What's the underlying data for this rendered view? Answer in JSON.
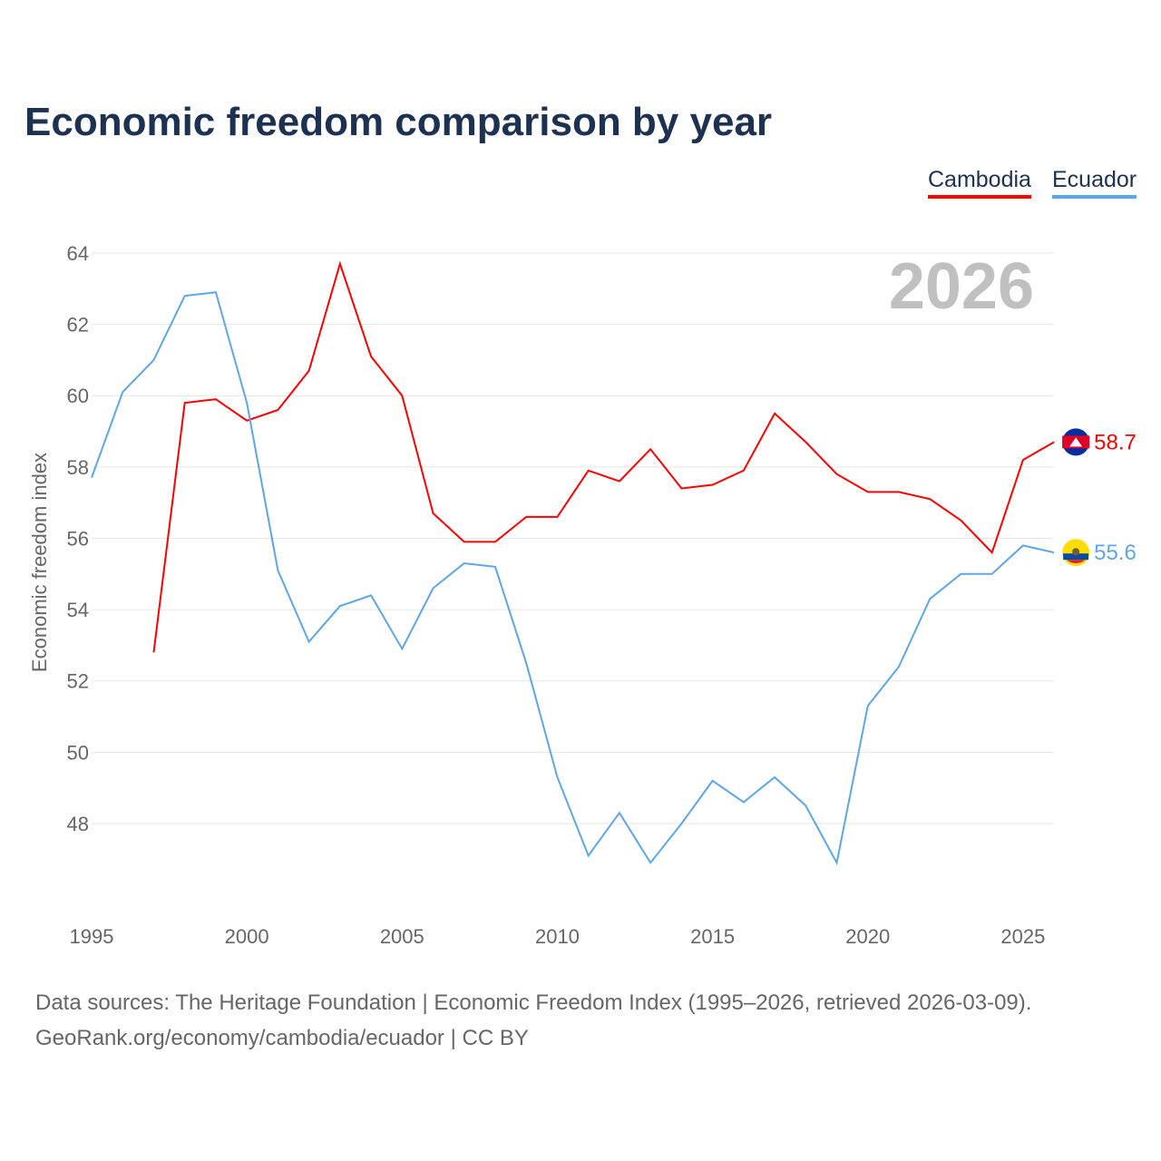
{
  "chart_data": {
    "type": "line",
    "title": "Economic freedom comparison by year",
    "xlabel": "",
    "ylabel": "Economic freedom index",
    "xlim": [
      1995,
      2026
    ],
    "ylim": [
      46,
      64
    ],
    "x_ticks": [
      "1995",
      "2000",
      "2005",
      "2010",
      "2015",
      "2020",
      "2025"
    ],
    "y_ticks": [
      "48",
      "50",
      "52",
      "54",
      "56",
      "58",
      "60",
      "62",
      "64"
    ],
    "grid": true,
    "legend_position": "top-right",
    "year_watermark": "2026",
    "series": [
      {
        "name": "Cambodia",
        "color": "#ff0000",
        "end_label": "58.7",
        "x": [
          1997,
          1998,
          1999,
          2000,
          2001,
          2002,
          2003,
          2004,
          2005,
          2006,
          2007,
          2008,
          2009,
          2010,
          2011,
          2012,
          2013,
          2014,
          2015,
          2016,
          2017,
          2018,
          2019,
          2020,
          2021,
          2022,
          2023,
          2024,
          2025,
          2026
        ],
        "values": [
          52.8,
          59.8,
          59.9,
          59.3,
          59.6,
          60.7,
          63.7,
          61.1,
          60.0,
          56.7,
          55.9,
          55.9,
          56.6,
          56.6,
          57.9,
          57.6,
          58.5,
          57.4,
          57.5,
          57.9,
          59.5,
          58.7,
          57.8,
          57.3,
          57.3,
          57.1,
          56.5,
          55.6,
          58.2,
          58.7
        ]
      },
      {
        "name": "Ecuador",
        "color": "#5da6ea",
        "end_label": "55.6",
        "x": [
          1995,
          1996,
          1997,
          1998,
          1999,
          2000,
          2001,
          2002,
          2003,
          2004,
          2005,
          2006,
          2007,
          2008,
          2009,
          2010,
          2011,
          2012,
          2013,
          2014,
          2015,
          2016,
          2017,
          2018,
          2019,
          2020,
          2021,
          2022,
          2023,
          2024,
          2025,
          2026
        ],
        "values": [
          57.7,
          60.1,
          61.0,
          62.8,
          62.9,
          59.8,
          55.1,
          53.1,
          54.1,
          54.4,
          52.9,
          54.6,
          55.3,
          55.2,
          52.5,
          49.3,
          47.1,
          48.3,
          46.9,
          48.0,
          49.2,
          48.6,
          49.3,
          48.5,
          46.9,
          51.3,
          52.4,
          54.3,
          55.0,
          55.0,
          55.8,
          55.6
        ]
      }
    ]
  },
  "source_line1": "Data sources: The Heritage Foundation | Economic Freedom Index (1995–2026, retrieved 2026-03-09).",
  "source_line2": "GeoRank.org/economy/cambodia/ecuador | CC BY"
}
